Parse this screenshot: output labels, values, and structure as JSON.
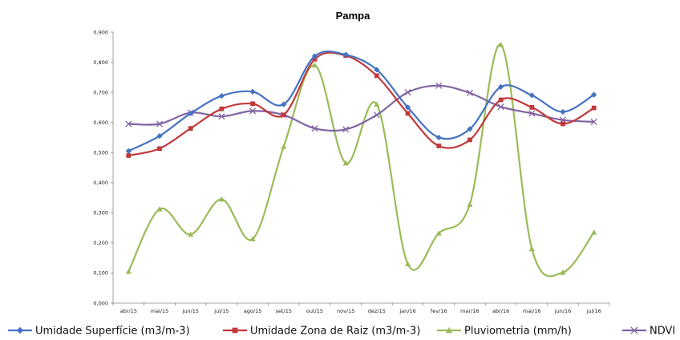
{
  "chart_data": {
    "type": "line",
    "title": "Pampa",
    "xlabel": "",
    "ylabel": "",
    "categories": [
      "abr/15",
      "mai/15",
      "jun/15",
      "jul/15",
      "ago/15",
      "set/15",
      "out/15",
      "nov/15",
      "dez/15",
      "jan/16",
      "fev/16",
      "mar/16",
      "abr/16",
      "mai/16",
      "jun/16",
      "jul/16"
    ],
    "y_ticks": [
      "0,000",
      "0,100",
      "0,200",
      "0,300",
      "0,400",
      "0,500",
      "0,600",
      "0,700",
      "0,800",
      "0,900"
    ],
    "ylim": [
      0,
      0.9
    ],
    "grid": false,
    "legend_position": "bottom",
    "series": [
      {
        "name": "Umidade Superfície (m3/m-3)",
        "color": "#4472C4",
        "marker": "diamond",
        "values": [
          0.505,
          0.555,
          0.63,
          0.688,
          0.702,
          0.66,
          0.82,
          0.825,
          0.775,
          0.65,
          0.55,
          0.578,
          0.718,
          0.69,
          0.635,
          0.692
        ]
      },
      {
        "name": "Umidade Zona de Raiz (m3/m-3)",
        "color": "#C0393B",
        "marker": "square",
        "values": [
          0.49,
          0.513,
          0.58,
          0.645,
          0.662,
          0.625,
          0.81,
          0.822,
          0.755,
          0.63,
          0.522,
          0.542,
          0.675,
          0.65,
          0.595,
          0.648
        ]
      },
      {
        "name": "Pluviometria (mm/h)",
        "color": "#9BBB59",
        "marker": "triangle",
        "values": [
          0.105,
          0.312,
          0.228,
          0.345,
          0.213,
          0.52,
          0.79,
          0.465,
          0.66,
          0.13,
          0.232,
          0.328,
          0.858,
          0.18,
          0.102,
          0.235
        ]
      },
      {
        "name": "NDVI",
        "color": "#8064A2",
        "marker": "x",
        "values": [
          0.595,
          0.595,
          0.632,
          0.62,
          0.638,
          0.625,
          0.58,
          0.577,
          0.625,
          0.7,
          0.722,
          0.698,
          0.652,
          0.63,
          0.608,
          0.602
        ]
      }
    ]
  }
}
